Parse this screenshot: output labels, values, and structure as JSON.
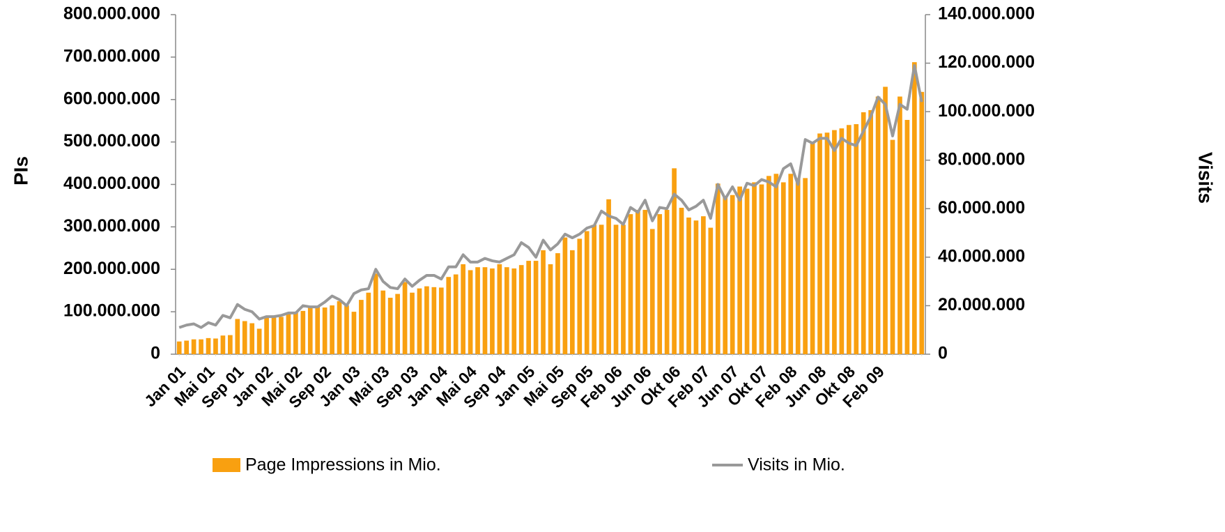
{
  "chart_data": {
    "type": "bar_line",
    "y_label": "PIs",
    "y2_label": "Visits",
    "categories": [
      "Jan 01",
      null,
      null,
      null,
      "Mai 01",
      null,
      null,
      null,
      "Sep 01",
      null,
      null,
      null,
      "Jan 02",
      null,
      null,
      null,
      "Mai 02",
      null,
      null,
      null,
      "Sep 02",
      null,
      null,
      null,
      "Jan 03",
      null,
      null,
      null,
      "Mai 03",
      null,
      null,
      null,
      "Sep 03",
      null,
      null,
      null,
      "Jan 04",
      null,
      null,
      null,
      "Mai 04",
      null,
      null,
      null,
      "Sep 04",
      null,
      null,
      null,
      "Jan 05",
      null,
      null,
      null,
      "Mai 05",
      null,
      null,
      null,
      "Sep 05",
      null,
      null,
      null,
      "Feb 06",
      null,
      null,
      null,
      "Jun 06",
      null,
      null,
      null,
      "Okt 06",
      null,
      null,
      null,
      "Feb 07",
      null,
      null,
      null,
      "Jun 07",
      null,
      null,
      null,
      "Okt 07",
      null,
      null,
      null,
      "Feb 08",
      null,
      null,
      null,
      "Jun 08",
      null,
      null,
      null,
      "Okt 08",
      null,
      null,
      null,
      "Feb 09",
      null,
      null,
      null,
      null,
      null,
      null
    ],
    "series": [
      {
        "name": "Page Impressions in Mio.",
        "color": "#f9a010",
        "kind": "bar",
        "axis": "y",
        "values": [
          30000000,
          32000000,
          35000000,
          35000000,
          38000000,
          37000000,
          44000000,
          45000000,
          83000000,
          78000000,
          73000000,
          60000000,
          88000000,
          90000000,
          88000000,
          96000000,
          100000000,
          102000000,
          110000000,
          112000000,
          110000000,
          115000000,
          125000000,
          115000000,
          100000000,
          128000000,
          145000000,
          190000000,
          150000000,
          133000000,
          142000000,
          170000000,
          145000000,
          155000000,
          160000000,
          158000000,
          157000000,
          182000000,
          188000000,
          212000000,
          198000000,
          205000000,
          205000000,
          202000000,
          212000000,
          205000000,
          202000000,
          210000000,
          220000000,
          220000000,
          245000000,
          212000000,
          238000000,
          275000000,
          245000000,
          272000000,
          290000000,
          305000000,
          305000000,
          365000000,
          305000000,
          305000000,
          330000000,
          340000000,
          340000000,
          295000000,
          330000000,
          340000000,
          438000000,
          345000000,
          322000000,
          315000000,
          325000000,
          298000000,
          402000000,
          370000000,
          375000000,
          395000000,
          390000000,
          405000000,
          400000000,
          420000000,
          425000000,
          405000000,
          425000000,
          415000000,
          415000000,
          500000000,
          520000000,
          522000000,
          528000000,
          532000000,
          540000000,
          542000000,
          570000000,
          575000000,
          607000000,
          630000000,
          505000000,
          607000000,
          552000000,
          688000000,
          618000000
        ]
      },
      {
        "name": "Visits in Mio.",
        "color": "#999999",
        "kind": "line",
        "axis": "y2",
        "values": [
          11000000,
          12000000,
          12500000,
          11000000,
          13000000,
          12000000,
          16000000,
          15000000,
          20500000,
          18500000,
          17500000,
          14500000,
          15500000,
          15500000,
          16000000,
          17000000,
          17000000,
          20000000,
          19500000,
          19500000,
          21500000,
          24000000,
          22500000,
          20000000,
          25000000,
          26500000,
          27000000,
          35000000,
          30000000,
          27500000,
          27000000,
          31000000,
          28000000,
          30500000,
          32500000,
          32500000,
          31000000,
          36000000,
          36000000,
          41000000,
          38000000,
          38000000,
          39500000,
          38500000,
          38000000,
          39500000,
          41000000,
          46000000,
          44000000,
          40000000,
          47000000,
          43000000,
          45500000,
          49500000,
          48000000,
          49500000,
          52000000,
          53000000,
          59000000,
          57000000,
          56000000,
          53500000,
          60500000,
          58500000,
          63500000,
          55000000,
          60500000,
          60000000,
          66000000,
          63500000,
          59500000,
          61000000,
          63500000,
          56000000,
          70000000,
          64000000,
          69000000,
          63500000,
          70500000,
          69500000,
          72000000,
          71000000,
          69000000,
          76500000,
          78500000,
          70000000,
          88500000,
          87000000,
          89000000,
          89000000,
          84000000,
          89000000,
          87000000,
          86000000,
          92000000,
          98000000,
          106000000,
          103000000,
          90000000,
          103000000,
          101000000,
          119000000,
          104000000
        ]
      }
    ],
    "ylim": [
      0,
      800000000
    ],
    "yticks": [
      0,
      {
        "value": 100000000,
        "label": "100.000.000"
      },
      {
        "value": 200000000,
        "label": "200.000.000"
      },
      {
        "value": 300000000,
        "label": "300.000.000"
      },
      {
        "value": 400000000,
        "label": "400.000.000"
      },
      {
        "value": 500000000,
        "label": "500.000.000"
      },
      {
        "value": 600000000,
        "label": "600.000.000"
      },
      {
        "value": 700000000,
        "label": "700.000.000"
      },
      {
        "value": 800000000,
        "label": "800.000.000"
      }
    ],
    "y2lim": [
      0,
      140000000
    ],
    "y2ticks": [
      0,
      {
        "value": 20000000,
        "label": "20.000.000"
      },
      {
        "value": 40000000,
        "label": "40.000.000"
      },
      {
        "value": 60000000,
        "label": "60.000.000"
      },
      {
        "value": 80000000,
        "label": "80.000.000"
      },
      {
        "value": 100000000,
        "label": "100.000.000"
      },
      {
        "value": 120000000,
        "label": "120.000.000"
      },
      {
        "value": 140000000,
        "label": "140.000.000"
      }
    ],
    "grid": false
  }
}
